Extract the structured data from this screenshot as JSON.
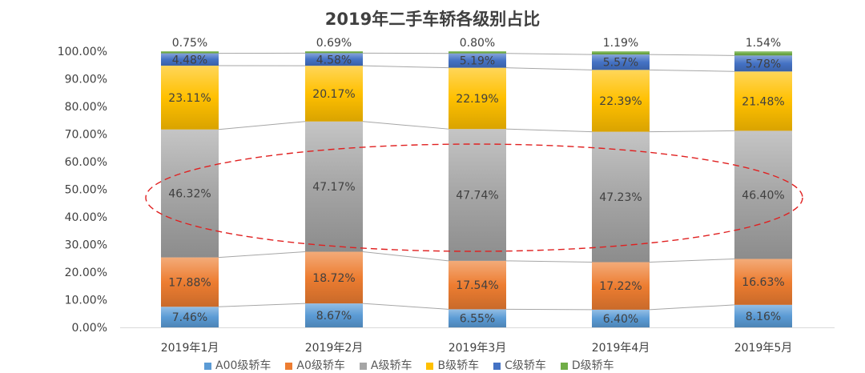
{
  "chart_data": {
    "type": "bar",
    "stacked": true,
    "title": "2019年二手车轿各级别占比",
    "categories": [
      "2019年1月",
      "2019年2月",
      "2019年3月",
      "2019年4月",
      "2019年5月"
    ],
    "series": [
      {
        "name": "A00级轿车",
        "color": "#5B9BD5",
        "values": [
          7.46,
          8.67,
          6.55,
          6.4,
          8.16
        ],
        "labels": [
          "7.46%",
          "8.67%",
          "6.55%",
          "6.40%",
          "8.16%"
        ]
      },
      {
        "name": "A0级轿车",
        "color": "#ED7D31",
        "values": [
          17.88,
          18.72,
          17.54,
          17.22,
          16.63
        ],
        "labels": [
          "17.88%",
          "18.72%",
          "17.54%",
          "17.22%",
          "16.63%"
        ]
      },
      {
        "name": "A级轿车",
        "color": "#A5A5A5",
        "values": [
          46.32,
          47.17,
          47.74,
          47.23,
          46.4
        ],
        "labels": [
          "46.32%",
          "47.17%",
          "47.74%",
          "47.23%",
          "46.40%"
        ]
      },
      {
        "name": "B级轿车",
        "color": "#FFC000",
        "values": [
          23.11,
          20.17,
          22.19,
          22.39,
          21.48
        ],
        "labels": [
          "23.11%",
          "20.17%",
          "22.19%",
          "22.39%",
          "21.48%"
        ]
      },
      {
        "name": "C级轿车",
        "color": "#4472C4",
        "values": [
          4.48,
          4.58,
          5.19,
          5.57,
          5.78
        ],
        "labels": [
          "4.48%",
          "4.58%",
          "5.19%",
          "5.57%",
          "5.78%"
        ]
      },
      {
        "name": "D级轿车",
        "color": "#70AD47",
        "values": [
          0.75,
          0.69,
          0.8,
          1.19,
          1.54
        ],
        "labels": [
          "0.75%",
          "0.69%",
          "0.80%",
          "1.19%",
          "1.54%"
        ]
      }
    ],
    "yticks": [
      "0.00%",
      "10.00%",
      "20.00%",
      "30.00%",
      "40.00%",
      "50.00%",
      "60.00%",
      "70.00%",
      "80.00%",
      "90.00%",
      "100.00%"
    ],
    "ylim": [
      0,
      100
    ],
    "grid": false,
    "legend_position": "bottom",
    "series_lines": true,
    "annotation": "dashed red ellipse around A级轿车 segments"
  }
}
